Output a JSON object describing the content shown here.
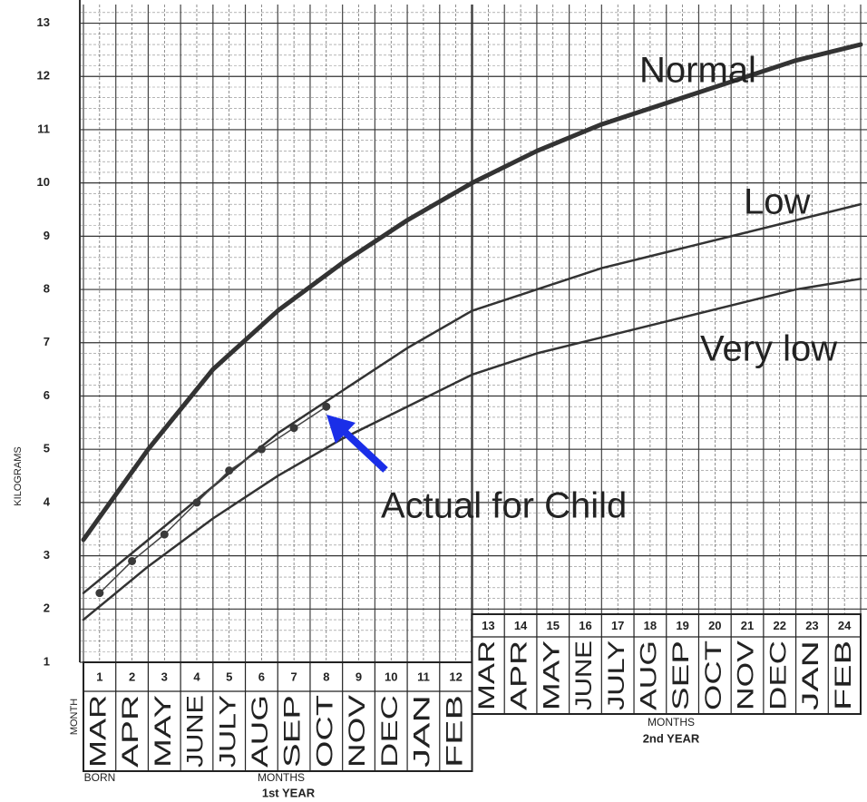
{
  "chart_data": {
    "type": "line",
    "y_axis_label": "KILOGRAMS",
    "ylim": [
      1,
      13.35
    ],
    "yticks": [
      1,
      2,
      3,
      4,
      5,
      6,
      7,
      8,
      9,
      10,
      11,
      12,
      13
    ],
    "xlim": [
      0,
      24
    ],
    "grid": true,
    "table": {
      "row_label": "MONTH",
      "born_label": "BORN",
      "first_year": {
        "axis_label": "MONTHS",
        "year_label": "1st YEAR",
        "numbers": [
          1,
          2,
          3,
          4,
          5,
          6,
          7,
          8,
          9,
          10,
          11,
          12
        ],
        "names": [
          "MAR",
          "APR",
          "MAY",
          "JUNE",
          "JULY",
          "AUG",
          "SEP",
          "OCT",
          "NOV",
          "DEC",
          "JAN",
          "FEB"
        ]
      },
      "second_year": {
        "axis_label": "MONTHS",
        "year_label": "2nd YEAR",
        "numbers": [
          13,
          14,
          15,
          16,
          17,
          18,
          19,
          20,
          21,
          22,
          23,
          24
        ],
        "names": [
          "MAR",
          "APR",
          "MAY",
          "JUNE",
          "JULY",
          "AUG",
          "SEP",
          "OCT",
          "NOV",
          "DEC",
          "JAN",
          "FEB"
        ]
      }
    },
    "series": [
      {
        "name": "Normal",
        "color": "#333333",
        "x": [
          0,
          2,
          4,
          6,
          8,
          10,
          12,
          14,
          16,
          18,
          20,
          22,
          24
        ],
        "values": [
          3.3,
          5.0,
          6.5,
          7.6,
          8.5,
          9.3,
          10.0,
          10.6,
          11.1,
          11.5,
          11.9,
          12.3,
          12.6
        ]
      },
      {
        "name": "Low",
        "color": "#333333",
        "x": [
          0,
          2,
          4,
          6,
          8,
          10,
          12,
          14,
          16,
          18,
          20,
          22,
          24
        ],
        "values": [
          2.3,
          3.3,
          4.3,
          5.3,
          6.1,
          6.9,
          7.6,
          8.0,
          8.4,
          8.7,
          9.0,
          9.3,
          9.6
        ]
      },
      {
        "name": "Very low",
        "color": "#333333",
        "x": [
          0,
          2,
          4,
          6,
          8,
          10,
          12,
          14,
          16,
          18,
          20,
          22,
          24
        ],
        "values": [
          1.8,
          2.8,
          3.7,
          4.5,
          5.2,
          5.8,
          6.4,
          6.8,
          7.1,
          7.4,
          7.7,
          8.0,
          8.2
        ]
      },
      {
        "name": "Actual for Child",
        "color": "#444444",
        "x": [
          0.5,
          1.5,
          2.5,
          3.5,
          4.5,
          5.5,
          6.5,
          7.5
        ],
        "values": [
          2.3,
          2.9,
          3.4,
          4.0,
          4.6,
          5.0,
          5.4,
          5.8
        ]
      }
    ]
  }
}
